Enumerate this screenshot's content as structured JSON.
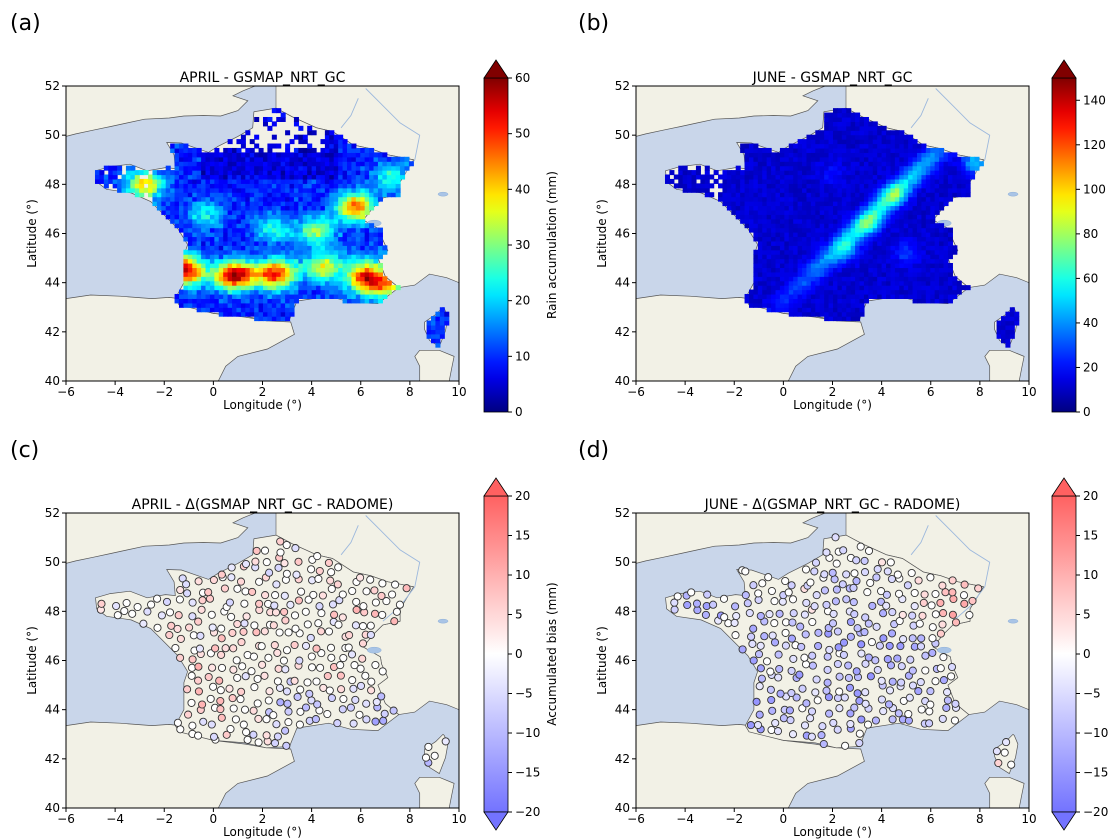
{
  "figure": {
    "panels": [
      {
        "label": "(a)",
        "title": "APRIL - GSMAP_NRT_GC",
        "kind": "raster",
        "cmap": "jet",
        "colorbar": {
          "label": "Rain accumulation (mm)",
          "ticks": [
            "0",
            "10",
            "20",
            "30",
            "40",
            "50",
            "60"
          ],
          "extend": "max",
          "min": 0,
          "max": 60
        }
      },
      {
        "label": "(b)",
        "title": "JUNE - GSMAP_NRT_GC",
        "kind": "raster",
        "cmap": "jet",
        "colorbar": {
          "label": "Rain accumulation (mm)",
          "ticks": [
            "0",
            "20",
            "40",
            "60",
            "80",
            "100",
            "120",
            "140"
          ],
          "extend": "max",
          "min": 0,
          "max": 150
        }
      },
      {
        "label": "(c)",
        "title": "APRIL - Δ(GSMAP_NRT_GC - RADOME)",
        "kind": "stations",
        "cmap": "bwr",
        "colorbar": {
          "label": "Accumulated bias (mm)",
          "ticks": [
            "20",
            "15",
            "10",
            "5",
            "0",
            "−5",
            "−10",
            "−15",
            "−20"
          ],
          "extend": "both",
          "min": -20,
          "max": 20
        }
      },
      {
        "label": "(d)",
        "title": "JUNE - Δ(GSMAP_NRT_GC - RADOME)",
        "kind": "stations",
        "cmap": "bwr",
        "colorbar": {
          "label": "Accumulated bias (mm)",
          "ticks": [
            "20",
            "15",
            "10",
            "5",
            "0",
            "−5",
            "−10",
            "−15",
            "−20"
          ],
          "extend": "both",
          "min": -20,
          "max": 20
        }
      }
    ],
    "xaxis": {
      "label": "Longitude (°)",
      "ticks": [
        "−6",
        "−4",
        "−2",
        "0",
        "2",
        "4",
        "6",
        "8",
        "10"
      ],
      "range": [
        -6,
        10
      ]
    },
    "yaxis": {
      "label": "Latitude (°)",
      "ticks": [
        "40",
        "42",
        "44",
        "46",
        "48",
        "50",
        "52"
      ],
      "range": [
        40,
        52
      ]
    },
    "colors": {
      "sea": "#c9d6ea",
      "land": "#f2f1e6",
      "coast": "#555555",
      "border": "#888888"
    }
  },
  "chart_data": [
    {
      "type": "heatmap",
      "title": "APRIL - GSMAP_NRT_GC",
      "xlabel": "Longitude (°)",
      "ylabel": "Latitude (°)",
      "xlim": [
        -6,
        10
      ],
      "ylim": [
        40,
        52
      ],
      "colorbar_label": "Rain accumulation (mm)",
      "crange": [
        0,
        60
      ],
      "hotspots": [
        {
          "lon": -1.2,
          "lat": 44.6,
          "value": 55
        },
        {
          "lon": 0.9,
          "lat": 44.3,
          "value": 55
        },
        {
          "lon": 5.8,
          "lat": 47.1,
          "value": 50
        },
        {
          "lon": 6.2,
          "lat": 44.2,
          "value": 55
        },
        {
          "lon": 2.5,
          "lat": 44.3,
          "value": 45
        },
        {
          "lon": 7.1,
          "lat": 43.9,
          "value": 35
        },
        {
          "lon": -2.8,
          "lat": 48.0,
          "value": 40
        },
        {
          "lon": 4.2,
          "lat": 46.1,
          "value": 30
        },
        {
          "lon": 4.5,
          "lat": 44.6,
          "value": 30
        },
        {
          "lon": 2.5,
          "lat": 46.2,
          "value": 20
        },
        {
          "lon": -0.3,
          "lat": 46.8,
          "value": 18
        },
        {
          "lon": 7.3,
          "lat": 48.3,
          "value": 20
        }
      ]
    },
    {
      "type": "heatmap",
      "title": "JUNE - GSMAP_NRT_GC",
      "xlabel": "Longitude (°)",
      "ylabel": "Latitude (°)",
      "xlim": [
        -6,
        10
      ],
      "ylim": [
        40,
        52
      ],
      "colorbar_label": "Rain accumulation (mm)",
      "crange": [
        0,
        150
      ],
      "hotspots": [
        {
          "lon": 7.8,
          "lat": 48.9,
          "value": 80
        },
        {
          "lon": 4.5,
          "lat": 47.6,
          "value": 65
        },
        {
          "lon": 3.5,
          "lat": 46.4,
          "value": 60
        },
        {
          "lon": 2.6,
          "lat": 45.3,
          "value": 45
        },
        {
          "lon": 5.0,
          "lat": 45.2,
          "value": 35
        },
        {
          "lon": 2.0,
          "lat": 48.5,
          "value": 20
        }
      ]
    },
    {
      "type": "scatter",
      "title": "APRIL - Δ(GSMAP_NRT_GC - RADOME)",
      "xlabel": "Longitude (°)",
      "ylabel": "Latitude (°)",
      "xlim": [
        -6,
        10
      ],
      "ylim": [
        40,
        52
      ],
      "colorbar_label": "Accumulated bias (mm)",
      "crange": [
        -20,
        20
      ],
      "region_bias": [
        {
          "lon": -3.0,
          "lat": 48.2,
          "bias": 0
        },
        {
          "lon": 0.5,
          "lat": 48.8,
          "bias": 0
        },
        {
          "lon": 4.5,
          "lat": 48.7,
          "bias": 0
        },
        {
          "lon": 6.5,
          "lat": 48.3,
          "bias": 5
        },
        {
          "lon": 2.5,
          "lat": 46.8,
          "bias": 3
        },
        {
          "lon": 0.0,
          "lat": 45.3,
          "bias": 6
        },
        {
          "lon": 3.0,
          "lat": 44.3,
          "bias": -8
        },
        {
          "lon": 5.8,
          "lat": 43.5,
          "bias": -10
        },
        {
          "lon": 4.8,
          "lat": 45.8,
          "bias": 5
        },
        {
          "lon": 9.2,
          "lat": 42.2,
          "bias": -4
        }
      ]
    },
    {
      "type": "scatter",
      "title": "JUNE - Δ(GSMAP_NRT_GC - RADOME)",
      "xlabel": "Longitude (°)",
      "ylabel": "Latitude (°)",
      "xlim": [
        -6,
        10
      ],
      "ylim": [
        40,
        52
      ],
      "colorbar_label": "Accumulated bias (mm)",
      "crange": [
        -20,
        20
      ],
      "region_bias": [
        {
          "lon": -3.0,
          "lat": 48.2,
          "bias": -8
        },
        {
          "lon": 0.5,
          "lat": 48.8,
          "bias": 0
        },
        {
          "lon": 2.5,
          "lat": 46.5,
          "bias": -10
        },
        {
          "lon": 4.5,
          "lat": 45.5,
          "bias": -12
        },
        {
          "lon": 6.8,
          "lat": 48.5,
          "bias": 8
        },
        {
          "lon": 0.0,
          "lat": 44.0,
          "bias": -10
        },
        {
          "lon": 5.5,
          "lat": 44.0,
          "bias": -6
        },
        {
          "lon": 9.2,
          "lat": 42.2,
          "bias": 0
        }
      ]
    }
  ]
}
